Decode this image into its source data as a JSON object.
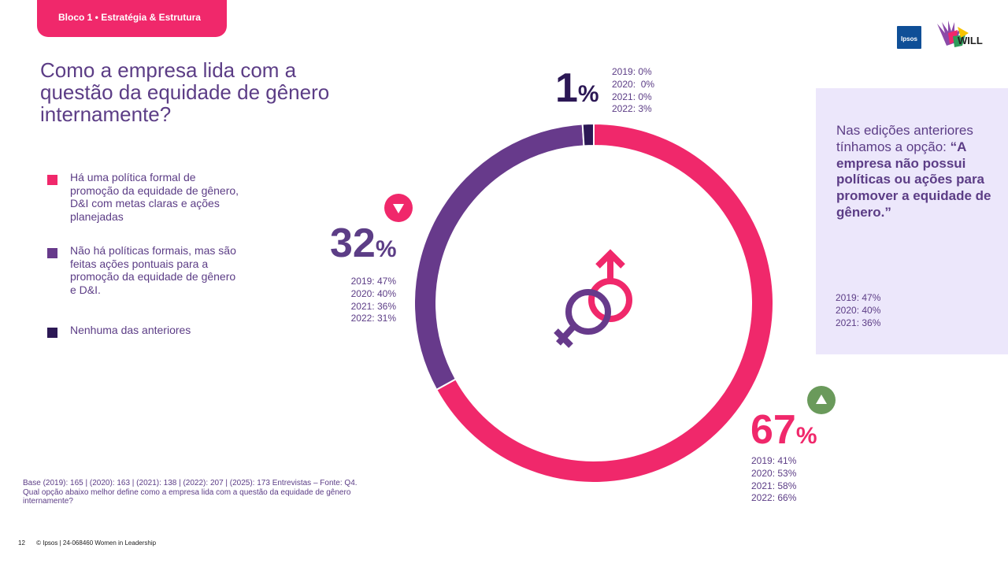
{
  "header": {
    "tab_label": "Bloco 1 • Estratégia & Estrutura"
  },
  "logos": {
    "ipsos": "Ipsos",
    "will": "WILL"
  },
  "title": "Como a empresa lida com a questão da equidade de gênero internamente?",
  "legend": [
    {
      "label": "Há uma política formal de promoção da equidade de gênero, D&I com metas claras e ações planejadas",
      "color": "#f0286b"
    },
    {
      "label": "Não há políticas formais, mas são feitas ações pontuais para a promoção da equidade de gênero e D&I.",
      "color": "#673a8b"
    },
    {
      "label": "Nenhuma das anteriores",
      "color": "#2c1855"
    }
  ],
  "chart_data": {
    "type": "pie",
    "style": "donut",
    "categories": [
      "Há uma política formal de promoção da equidade de gênero, D&I com metas claras e ações planejadas",
      "Não há políticas formais, mas são feitas ações pontuais para a promoção da equidade de gênero e D&I.",
      "Nenhuma das anteriores"
    ],
    "values": [
      67,
      32,
      1
    ],
    "colors": [
      "#f0286b",
      "#673a8b",
      "#2c1855"
    ],
    "labels": [
      {
        "value": "67",
        "unit": "%",
        "trend": "up",
        "history": [
          "2019: 41%",
          "2020: 53%",
          "2021: 58%",
          "2022: 66%"
        ]
      },
      {
        "value": "32",
        "unit": "%",
        "trend": "down",
        "history": [
          "2019: 47%",
          "2020: 40%",
          "2021: 36%",
          "2022: 31%"
        ]
      },
      {
        "value": "1",
        "unit": "%",
        "trend": "none",
        "history": [
          "2019: 0%",
          "2020:  0%",
          "2021: 0%",
          "2022: 3%"
        ]
      }
    ]
  },
  "side_panel": {
    "intro": "Nas edições anteriores tínhamos a opção:",
    "quote": "“A empresa não possui políticas ou ações para promover a equidade de gênero.”",
    "history": [
      "2019: 47%",
      "2020: 40%",
      "2021: 36%"
    ]
  },
  "base_note": "Base (2019): 165 | (2020): 163 | (2021): 138 | (2022): 207 | (2025): 173 Entrevistas – Fonte: Q4. Qual opção abaixo melhor define como a empresa lida com a questão da equidade de gênero internamente?",
  "footer": {
    "page": "12",
    "copyright": "© Ipsos | 24-068460 Women in Leadership"
  },
  "icons": {
    "center": "gender-symbols-icon",
    "up": "arrow-up-icon",
    "down": "arrow-down-icon"
  },
  "trend_colors": {
    "up": "#6a9a5b",
    "down": "#f0286b"
  }
}
